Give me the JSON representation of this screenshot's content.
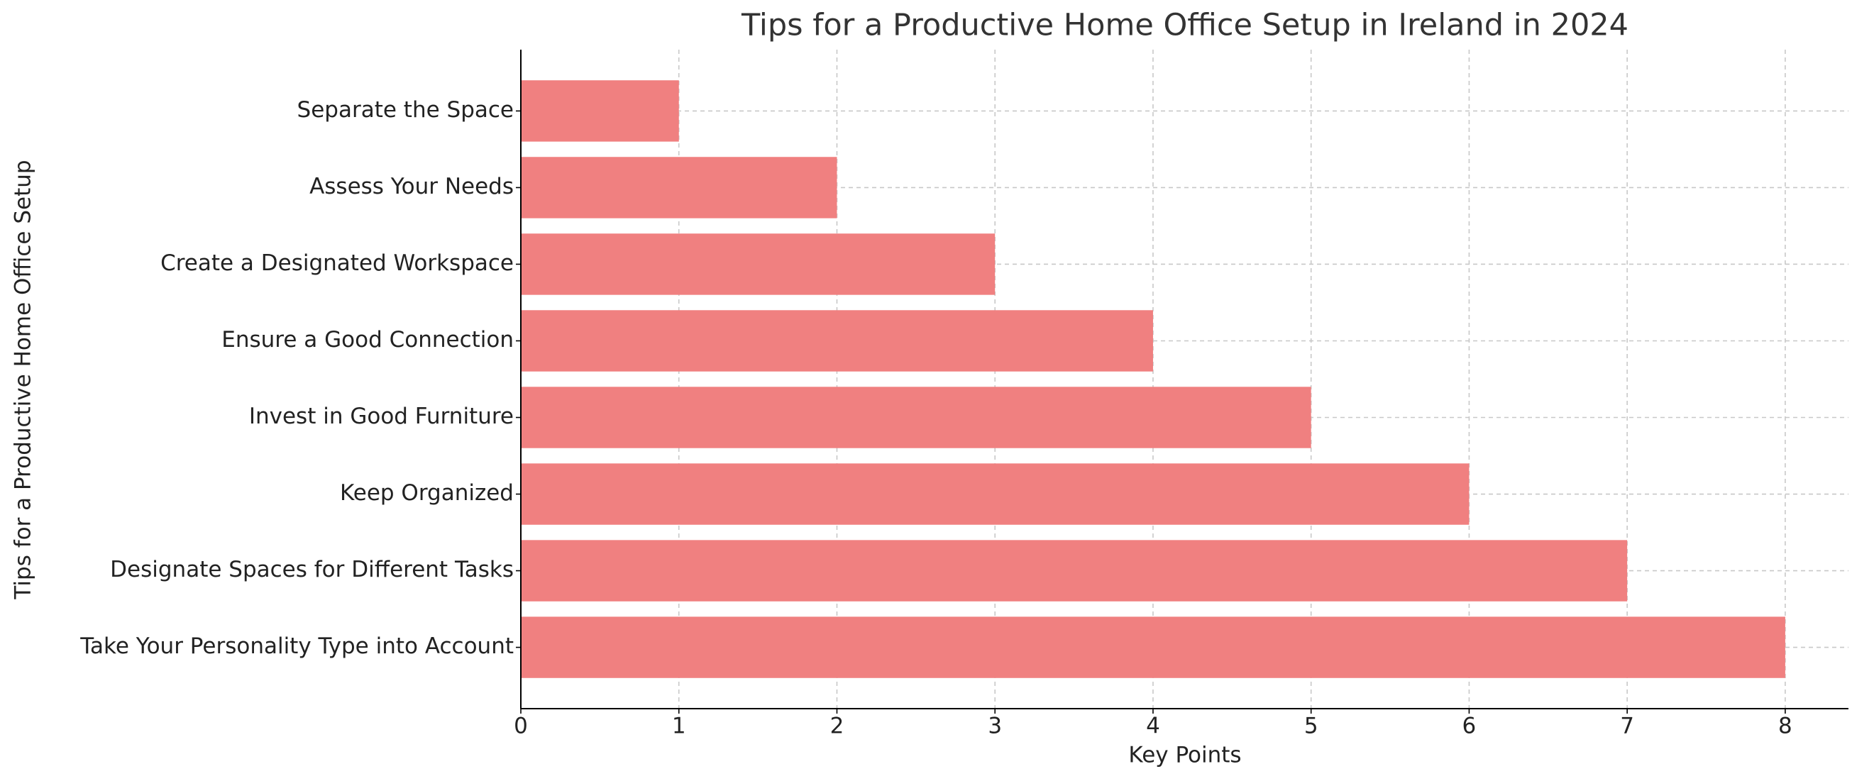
{
  "chart_data": {
    "type": "barh",
    "title": "Tips for a Productive Home Office Setup in Ireland in 2024",
    "xlabel": "Key Points",
    "ylabel": "Tips for a Productive Home Office Setup",
    "categories": [
      "Separate the Space",
      "Assess Your Needs",
      "Create a Designated Workspace",
      "Ensure a Good Connection",
      "Invest in Good Furniture",
      "Keep Organized",
      "Designate Spaces for Different Tasks",
      "Take Your Personality Type into Account"
    ],
    "values": [
      1,
      2,
      3,
      4,
      5,
      6,
      7,
      8
    ],
    "color": "#f08080",
    "xlim": [
      0,
      8.4
    ],
    "xticks": [
      0,
      1,
      2,
      3,
      4,
      5,
      6,
      7,
      8
    ],
    "grid": true
  }
}
